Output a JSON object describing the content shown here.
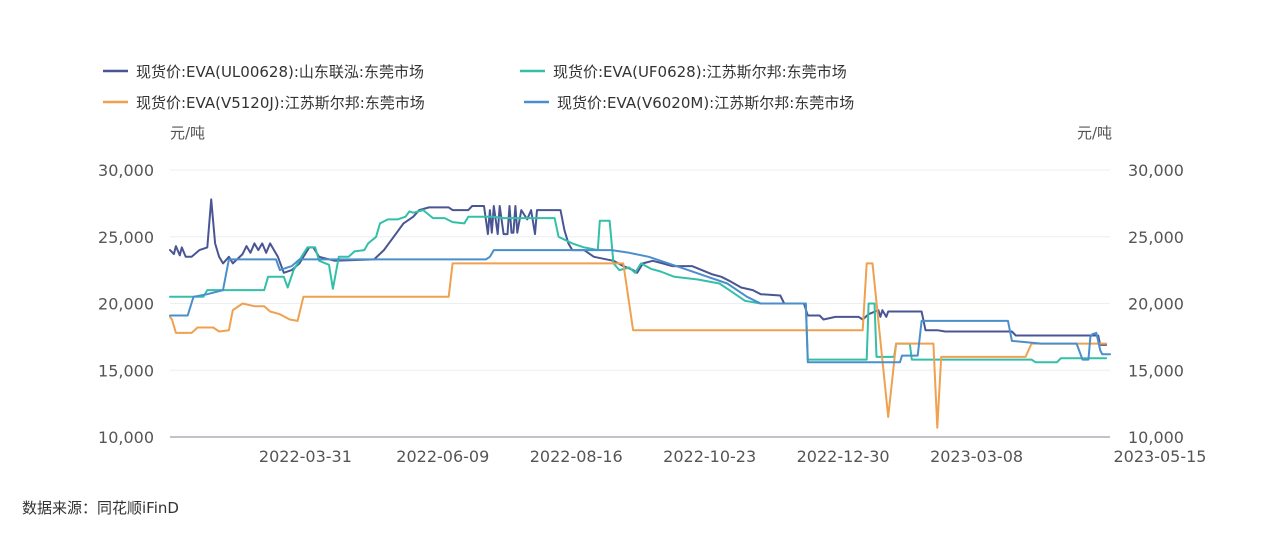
{
  "source_text": "数据来源：同花顺iFinD",
  "chart_data": {
    "type": "line",
    "left_unit": "元/吨",
    "right_unit": "元/吨",
    "ylim": [
      10000,
      30000
    ],
    "y_ticks": [
      "30,000",
      "25,000",
      "20,000",
      "15,000",
      "10,000"
    ],
    "y_tick_values": [
      30000,
      25000,
      20000,
      15000,
      10000
    ],
    "x_range": [
      "2022-01-21",
      "2023-05-15"
    ],
    "x_ticks": [
      "2022-03-31",
      "2022-06-09",
      "2022-08-16",
      "2022-10-23",
      "2022-12-30",
      "2023-03-08",
      "2023-05-15"
    ],
    "legend_position": "top-left",
    "grid": true,
    "series": [
      {
        "name": "现货价:EVA(UL00628):山东联泓:东莞市场",
        "color": "#4a5694",
        "points": [
          [
            "2022-01-21",
            24000
          ],
          [
            "2022-01-23",
            23700
          ],
          [
            "2022-01-24",
            24300
          ],
          [
            "2022-01-26",
            23600
          ],
          [
            "2022-01-27",
            24200
          ],
          [
            "2022-01-29",
            23500
          ],
          [
            "2022-02-01",
            23500
          ],
          [
            "2022-02-05",
            24000
          ],
          [
            "2022-02-09",
            24200
          ],
          [
            "2022-02-11",
            27800
          ],
          [
            "2022-02-13",
            24500
          ],
          [
            "2022-02-15",
            23500
          ],
          [
            "2022-02-17",
            23000
          ],
          [
            "2022-02-20",
            23500
          ],
          [
            "2022-02-22",
            23000
          ],
          [
            "2022-02-27",
            23700
          ],
          [
            "2022-03-01",
            24300
          ],
          [
            "2022-03-03",
            23800
          ],
          [
            "2022-03-05",
            24500
          ],
          [
            "2022-03-07",
            24000
          ],
          [
            "2022-03-09",
            24500
          ],
          [
            "2022-03-11",
            23800
          ],
          [
            "2022-03-13",
            24500
          ],
          [
            "2022-03-15",
            24000
          ],
          [
            "2022-03-17",
            23500
          ],
          [
            "2022-03-20",
            22300
          ],
          [
            "2022-03-24",
            22500
          ],
          [
            "2022-03-28",
            23000
          ],
          [
            "2022-03-30",
            23500
          ],
          [
            "2022-04-02",
            24200
          ],
          [
            "2022-04-04",
            24200
          ],
          [
            "2022-04-07",
            23500
          ],
          [
            "2022-04-15",
            23200
          ],
          [
            "2022-05-05",
            23300
          ],
          [
            "2022-05-10",
            24000
          ],
          [
            "2022-05-15",
            25000
          ],
          [
            "2022-05-20",
            26000
          ],
          [
            "2022-05-25",
            26500
          ],
          [
            "2022-05-28",
            27000
          ],
          [
            "2022-06-02",
            27200
          ],
          [
            "2022-06-12",
            27200
          ],
          [
            "2022-06-14",
            27000
          ],
          [
            "2022-06-22",
            27000
          ],
          [
            "2022-06-24",
            27300
          ],
          [
            "2022-06-30",
            27300
          ],
          [
            "2022-07-02",
            25200
          ],
          [
            "2022-07-03",
            27000
          ],
          [
            "2022-07-04",
            25300
          ],
          [
            "2022-07-05",
            27300
          ],
          [
            "2022-07-07",
            25200
          ],
          [
            "2022-07-08",
            27300
          ],
          [
            "2022-07-10",
            25200
          ],
          [
            "2022-07-12",
            25200
          ],
          [
            "2022-07-13",
            27300
          ],
          [
            "2022-07-14",
            25300
          ],
          [
            "2022-07-15",
            25300
          ],
          [
            "2022-07-16",
            27300
          ],
          [
            "2022-07-17",
            25300
          ],
          [
            "2022-07-19",
            27000
          ],
          [
            "2022-07-22",
            26300
          ],
          [
            "2022-07-24",
            27000
          ],
          [
            "2022-07-26",
            25200
          ],
          [
            "2022-07-27",
            27000
          ],
          [
            "2022-08-08",
            27000
          ],
          [
            "2022-08-10",
            25500
          ],
          [
            "2022-08-12",
            24500
          ],
          [
            "2022-08-14",
            24000
          ],
          [
            "2022-08-20",
            24000
          ],
          [
            "2022-08-25",
            23500
          ],
          [
            "2022-09-04",
            23200
          ],
          [
            "2022-09-09",
            22800
          ],
          [
            "2022-09-14",
            22500
          ],
          [
            "2022-09-16",
            22300
          ],
          [
            "2022-09-19",
            23000
          ],
          [
            "2022-09-24",
            23200
          ],
          [
            "2022-09-29",
            23000
          ],
          [
            "2022-10-04",
            22800
          ],
          [
            "2022-10-14",
            22800
          ],
          [
            "2022-10-19",
            22500
          ],
          [
            "2022-10-24",
            22200
          ],
          [
            "2022-10-29",
            22000
          ],
          [
            "2022-11-02",
            21700
          ],
          [
            "2022-11-08",
            21200
          ],
          [
            "2022-11-14",
            21000
          ],
          [
            "2022-11-18",
            20700
          ],
          [
            "2022-11-28",
            20600
          ],
          [
            "2022-11-30",
            20000
          ],
          [
            "2022-12-10",
            20000
          ],
          [
            "2022-12-12",
            19100
          ],
          [
            "2022-12-18",
            19100
          ],
          [
            "2022-12-20",
            18800
          ],
          [
            "2022-12-26",
            19000
          ],
          [
            "2023-01-07",
            19000
          ],
          [
            "2023-01-09",
            18800
          ],
          [
            "2023-01-12",
            19200
          ],
          [
            "2023-01-17",
            19500
          ],
          [
            "2023-01-18",
            19000
          ],
          [
            "2023-01-19",
            19500
          ],
          [
            "2023-01-21",
            19000
          ],
          [
            "2023-01-22",
            19400
          ],
          [
            "2023-01-25",
            19400
          ],
          [
            "2023-02-08",
            19400
          ],
          [
            "2023-02-10",
            18000
          ],
          [
            "2023-02-16",
            18000
          ],
          [
            "2023-02-20",
            17900
          ],
          [
            "2023-03-26",
            17900
          ],
          [
            "2023-03-28",
            17600
          ],
          [
            "2023-05-09",
            17600
          ],
          [
            "2023-05-10",
            16900
          ],
          [
            "2023-05-13",
            16900
          ]
        ]
      },
      {
        "name": "现货价:EVA(UF0628):江苏斯尔邦:东莞市场",
        "color": "#33bfa8",
        "points": [
          [
            "2022-01-21",
            20500
          ],
          [
            "2022-02-07",
            20500
          ],
          [
            "2022-02-09",
            21000
          ],
          [
            "2022-03-10",
            21000
          ],
          [
            "2022-03-12",
            22000
          ],
          [
            "2022-03-20",
            22000
          ],
          [
            "2022-03-22",
            21200
          ],
          [
            "2022-03-25",
            22500
          ],
          [
            "2022-03-29",
            23500
          ],
          [
            "2022-04-01",
            24200
          ],
          [
            "2022-04-05",
            24200
          ],
          [
            "2022-04-07",
            23200
          ],
          [
            "2022-04-12",
            22900
          ],
          [
            "2022-04-14",
            21100
          ],
          [
            "2022-04-17",
            23500
          ],
          [
            "2022-04-22",
            23500
          ],
          [
            "2022-04-25",
            23900
          ],
          [
            "2022-04-30",
            24000
          ],
          [
            "2022-05-02",
            24500
          ],
          [
            "2022-05-06",
            25000
          ],
          [
            "2022-05-08",
            26000
          ],
          [
            "2022-05-12",
            26300
          ],
          [
            "2022-05-17",
            26300
          ],
          [
            "2022-05-21",
            26500
          ],
          [
            "2022-05-23",
            26900
          ],
          [
            "2022-05-25",
            26800
          ],
          [
            "2022-05-30",
            27000
          ],
          [
            "2022-06-04",
            26400
          ],
          [
            "2022-06-10",
            26400
          ],
          [
            "2022-06-14",
            26100
          ],
          [
            "2022-06-20",
            26000
          ],
          [
            "2022-06-22",
            26500
          ],
          [
            "2022-06-27",
            26500
          ],
          [
            "2022-07-05",
            26500
          ],
          [
            "2022-07-10",
            26400
          ],
          [
            "2022-08-05",
            26400
          ],
          [
            "2022-08-07",
            25000
          ],
          [
            "2022-08-14",
            24500
          ],
          [
            "2022-08-20",
            24200
          ],
          [
            "2022-08-27",
            24000
          ],
          [
            "2022-08-28",
            26200
          ],
          [
            "2022-09-02",
            26200
          ],
          [
            "2022-09-04",
            23000
          ],
          [
            "2022-09-07",
            22500
          ],
          [
            "2022-09-12",
            22700
          ],
          [
            "2022-09-15",
            22300
          ],
          [
            "2022-09-18",
            23000
          ],
          [
            "2022-09-23",
            22600
          ],
          [
            "2022-09-28",
            22400
          ],
          [
            "2022-10-05",
            22000
          ],
          [
            "2022-10-17",
            21800
          ],
          [
            "2022-10-28",
            21500
          ],
          [
            "2022-11-02",
            21000
          ],
          [
            "2022-11-10",
            20200
          ],
          [
            "2022-11-18",
            20000
          ],
          [
            "2022-12-11",
            20000
          ],
          [
            "2022-12-12",
            15800
          ],
          [
            "2023-01-11",
            15800
          ],
          [
            "2023-01-12",
            20000
          ],
          [
            "2023-01-15",
            20000
          ],
          [
            "2023-01-16",
            16000
          ],
          [
            "2023-01-25",
            16000
          ],
          [
            "2023-01-26",
            17000
          ],
          [
            "2023-02-02",
            17000
          ],
          [
            "2023-02-03",
            15800
          ],
          [
            "2023-04-05",
            15800
          ],
          [
            "2023-04-07",
            15600
          ],
          [
            "2023-04-18",
            15600
          ],
          [
            "2023-04-20",
            15900
          ],
          [
            "2023-05-13",
            15900
          ]
        ]
      },
      {
        "name": "现货价:EVA(V5120J):江苏斯尔邦:东莞市场",
        "color": "#f0a150",
        "points": [
          [
            "2022-01-21",
            19000
          ],
          [
            "2022-01-22",
            18800
          ],
          [
            "2022-01-24",
            17800
          ],
          [
            "2022-02-01",
            17800
          ],
          [
            "2022-02-04",
            18200
          ],
          [
            "2022-02-12",
            18200
          ],
          [
            "2022-02-15",
            17900
          ],
          [
            "2022-02-20",
            18000
          ],
          [
            "2022-02-22",
            19500
          ],
          [
            "2022-02-27",
            20000
          ],
          [
            "2022-03-05",
            19800
          ],
          [
            "2022-03-10",
            19800
          ],
          [
            "2022-03-13",
            19400
          ],
          [
            "2022-03-18",
            19200
          ],
          [
            "2022-03-23",
            18800
          ],
          [
            "2022-03-27",
            18700
          ],
          [
            "2022-03-30",
            20500
          ],
          [
            "2022-06-12",
            20500
          ],
          [
            "2022-06-14",
            23000
          ],
          [
            "2022-09-09",
            23000
          ],
          [
            "2022-09-14",
            18000
          ],
          [
            "2023-01-09",
            18000
          ],
          [
            "2023-01-11",
            23000
          ],
          [
            "2023-01-14",
            23000
          ],
          [
            "2023-01-22",
            11500
          ],
          [
            "2023-01-26",
            17000
          ],
          [
            "2023-02-14",
            17000
          ],
          [
            "2023-02-16",
            10700
          ],
          [
            "2023-02-18",
            16000
          ],
          [
            "2023-04-02",
            16000
          ],
          [
            "2023-04-05",
            17000
          ],
          [
            "2023-05-13",
            17000
          ]
        ]
      },
      {
        "name": "现货价:EVA(V6020M):江苏斯尔邦:东莞市场",
        "color": "#4a8fcc",
        "points": [
          [
            "2022-01-21",
            19100
          ],
          [
            "2022-01-30",
            19100
          ],
          [
            "2022-02-02",
            20500
          ],
          [
            "2022-02-09",
            20700
          ],
          [
            "2022-02-17",
            21000
          ],
          [
            "2022-02-20",
            23300
          ],
          [
            "2022-03-16",
            23300
          ],
          [
            "2022-03-18",
            22500
          ],
          [
            "2022-03-24",
            22800
          ],
          [
            "2022-03-28",
            23300
          ],
          [
            "2022-07-01",
            23300
          ],
          [
            "2022-07-03",
            23500
          ],
          [
            "2022-07-05",
            24000
          ],
          [
            "2022-08-26",
            24000
          ],
          [
            "2022-09-03",
            24000
          ],
          [
            "2022-09-12",
            23800
          ],
          [
            "2022-09-22",
            23500
          ],
          [
            "2022-10-02",
            23000
          ],
          [
            "2022-10-12",
            22500
          ],
          [
            "2022-10-22",
            22000
          ],
          [
            "2022-11-01",
            21500
          ],
          [
            "2022-11-11",
            20500
          ],
          [
            "2022-11-18",
            20000
          ],
          [
            "2022-12-11",
            20000
          ],
          [
            "2022-12-12",
            15600
          ],
          [
            "2023-01-28",
            15600
          ],
          [
            "2023-01-29",
            16100
          ],
          [
            "2023-02-06",
            16100
          ],
          [
            "2023-02-08",
            18700
          ],
          [
            "2023-03-24",
            18700
          ],
          [
            "2023-03-26",
            17200
          ],
          [
            "2023-04-10",
            17000
          ],
          [
            "2023-04-28",
            17000
          ],
          [
            "2023-05-01",
            15800
          ],
          [
            "2023-05-04",
            15800
          ],
          [
            "2023-05-05",
            17500
          ],
          [
            "2023-05-06",
            17700
          ],
          [
            "2023-05-08",
            17800
          ],
          [
            "2023-05-10",
            16500
          ],
          [
            "2023-05-11",
            16200
          ],
          [
            "2023-05-15",
            16200
          ]
        ]
      }
    ]
  }
}
